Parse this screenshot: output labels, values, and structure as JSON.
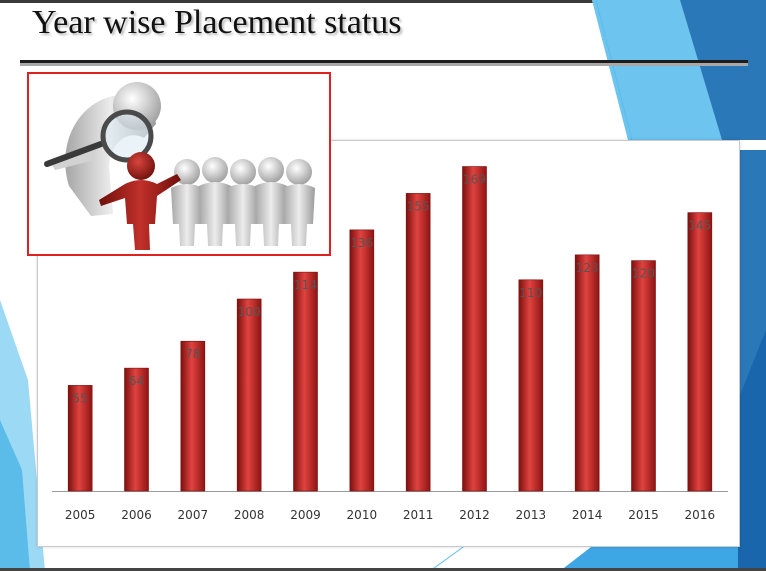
{
  "slide": {
    "title": "Year wise Placement status"
  },
  "colors": {
    "bar": "#c0201d",
    "accent_blue": "#3d9ad8",
    "picture_border": "#e0211f",
    "person_highlight": "#a5211c",
    "person_grey": "#c8c8c8"
  },
  "illustration": {
    "icon": "magnifier-team-illustration"
  },
  "chart_data": {
    "type": "bar",
    "categories": [
      "2005",
      "2006",
      "2007",
      "2008",
      "2009",
      "2010",
      "2011",
      "2012",
      "2013",
      "2014",
      "2015",
      "2016"
    ],
    "values": [
      55,
      64,
      78,
      100,
      114,
      136,
      155,
      169,
      110,
      123,
      120,
      145
    ],
    "value_labels": [
      "55",
      "64",
      "78",
      "100",
      "114",
      "136",
      "155",
      "169",
      "110",
      "123",
      "120",
      "145"
    ],
    "title": "",
    "xlabel": "",
    "ylabel": "",
    "ylim": [
      0,
      175
    ],
    "grid": false,
    "legend": "none"
  }
}
